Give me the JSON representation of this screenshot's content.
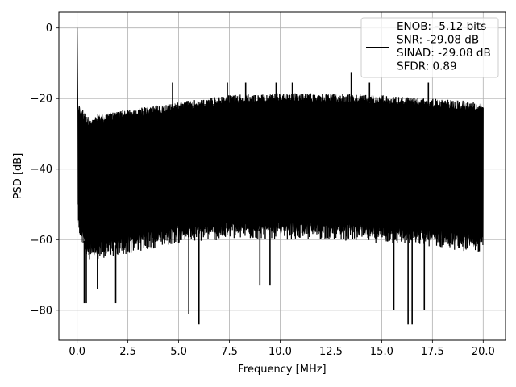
{
  "chart_data": {
    "type": "line",
    "title": "",
    "xlabel": "Frequency [MHz]",
    "ylabel": "PSD [dB]",
    "xlim": [
      -0.9,
      21.1
    ],
    "ylim": [
      -88.5,
      4.5
    ],
    "x_ticks": [
      0.0,
      2.5,
      5.0,
      7.5,
      10.0,
      12.5,
      15.0,
      17.5,
      20.0
    ],
    "x_tick_labels": [
      "0.0",
      "2.5",
      "5.0",
      "7.5",
      "10.0",
      "12.5",
      "15.0",
      "17.5",
      "20.0"
    ],
    "y_ticks": [
      0,
      -20,
      -40,
      -60,
      -80
    ],
    "y_tick_labels": [
      "0",
      "−20",
      "−40",
      "−60",
      "−80"
    ],
    "grid": true,
    "legend_position": "top-right",
    "series": [
      {
        "name": "",
        "color": "#000000",
        "description_values": {
          "x_range_mhz": [
            0.0,
            20.0
          ],
          "peak": {
            "x": 0.0,
            "y": 0.0
          },
          "noise_floor_upper_envelope": [
            {
              "x": 0.05,
              "y": -21
            },
            {
              "x": 0.5,
              "y": -25
            },
            {
              "x": 1.0,
              "y": -24.5
            },
            {
              "x": 2.5,
              "y": -23
            },
            {
              "x": 5.0,
              "y": -21
            },
            {
              "x": 7.5,
              "y": -19
            },
            {
              "x": 10.0,
              "y": -18.5
            },
            {
              "x": 12.5,
              "y": -18.5
            },
            {
              "x": 15.0,
              "y": -19
            },
            {
              "x": 17.5,
              "y": -20
            },
            {
              "x": 20.0,
              "y": -21
            }
          ],
          "noise_floor_lower_envelope": [
            {
              "x": 0.05,
              "y": -58
            },
            {
              "x": 0.5,
              "y": -66
            },
            {
              "x": 2.5,
              "y": -64
            },
            {
              "x": 5.0,
              "y": -61
            },
            {
              "x": 7.5,
              "y": -60
            },
            {
              "x": 10.0,
              "y": -60
            },
            {
              "x": 12.5,
              "y": -60
            },
            {
              "x": 15.0,
              "y": -61
            },
            {
              "x": 17.5,
              "y": -62
            },
            {
              "x": 20.0,
              "y": -64
            }
          ],
          "spurs": [
            {
              "x": 4.7,
              "y": -15.5
            },
            {
              "x": 7.4,
              "y": -15.5
            },
            {
              "x": 8.3,
              "y": -15.5
            },
            {
              "x": 9.8,
              "y": -15.5
            },
            {
              "x": 10.6,
              "y": -15.5
            },
            {
              "x": 13.5,
              "y": -12.5
            },
            {
              "x": 14.4,
              "y": -15.5
            },
            {
              "x": 17.3,
              "y": -15.5
            }
          ],
          "deep_dips": [
            {
              "x": 0.35,
              "y": -78
            },
            {
              "x": 0.45,
              "y": -78
            },
            {
              "x": 1.0,
              "y": -74
            },
            {
              "x": 1.9,
              "y": -78
            },
            {
              "x": 5.5,
              "y": -81
            },
            {
              "x": 6.0,
              "y": -84
            },
            {
              "x": 9.0,
              "y": -73
            },
            {
              "x": 9.5,
              "y": -73
            },
            {
              "x": 15.6,
              "y": -80
            },
            {
              "x": 16.3,
              "y": -84
            },
            {
              "x": 16.5,
              "y": -84
            },
            {
              "x": 17.1,
              "y": -80
            }
          ]
        }
      }
    ],
    "legend": {
      "lines": [
        "ENOB: -5.12 bits",
        "SNR: -29.08 dB",
        "SINAD: -29.08 dB",
        "SFDR: 0.89"
      ]
    }
  }
}
